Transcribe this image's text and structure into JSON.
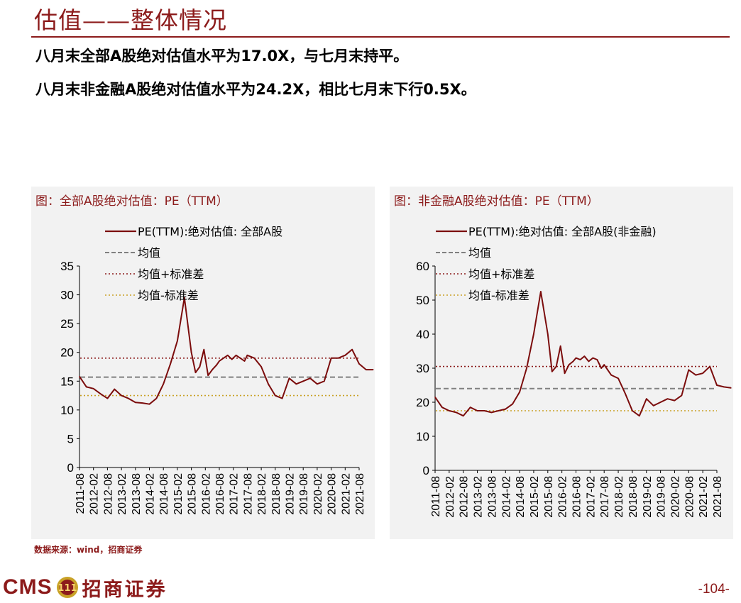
{
  "header": {
    "title": "估值——整体情况",
    "line1": "八月末全部A股绝对估值水平为17.0X，与七月末持平。",
    "line2": "八月末非金融A股绝对估值水平为24.2X，相比七月末下行0.5X。"
  },
  "footer": {
    "source": "数据来源：wind，招商证券",
    "logo_text": "CMS",
    "logo_cn": "招商证券",
    "page_number": "-104-"
  },
  "colors": {
    "accent": "#8c1b1b",
    "series": "#7b0c0c",
    "mean": "#808080",
    "upper": "#8b1a1a",
    "lower": "#c9a227"
  },
  "chart_data": [
    {
      "type": "line",
      "title": "图：全部A股绝对估值：PE（TTM）",
      "xlabel": "",
      "ylabel": "",
      "ylim": [
        0,
        35
      ],
      "yticks": [
        "0",
        "5",
        "10",
        "15",
        "20",
        "25",
        "30",
        "35"
      ],
      "x_tick_labels": [
        "2011-08",
        "2012-02",
        "2012-08",
        "2013-02",
        "2013-08",
        "2014-02",
        "2014-08",
        "2015-02",
        "2015-08",
        "2016-02",
        "2016-08",
        "2017-02",
        "2017-08",
        "2018-02",
        "2018-08",
        "2019-02",
        "2019-08",
        "2020-02",
        "2020-08",
        "2021-02",
        "2021-08"
      ],
      "series": [
        {
          "name": "PE(TTM):绝对估值: 全部A股",
          "style": "solid",
          "x": [
            0,
            0.5,
            1,
            1.5,
            2,
            2.5,
            3,
            3.5,
            4,
            4.5,
            5,
            5.5,
            6,
            6.5,
            7,
            7.5,
            8,
            8.3,
            8.6,
            8.9,
            9.2,
            9.5,
            9.8,
            10,
            10.3,
            10.6,
            10.9,
            11.2,
            11.5,
            11.8,
            12,
            12.5,
            13,
            13.5,
            14,
            14.5,
            15,
            15.5,
            16,
            16.5,
            17,
            17.5,
            18,
            18.5,
            19,
            19.5,
            20,
            20.5,
            21
          ],
          "values": [
            15.8,
            14.0,
            13.7,
            12.8,
            12.0,
            13.6,
            12.5,
            12.0,
            11.3,
            11.2,
            11.0,
            12.0,
            14.5,
            18.0,
            22.0,
            29.5,
            20.0,
            16.5,
            17.5,
            20.5,
            16.0,
            17.0,
            17.8,
            18.5,
            19.0,
            19.5,
            18.8,
            19.5,
            19.0,
            18.5,
            19.5,
            19.0,
            17.5,
            14.5,
            12.5,
            12.0,
            15.5,
            14.5,
            15.0,
            15.5,
            14.5,
            15.0,
            19.0,
            19.0,
            19.5,
            20.5,
            18.0,
            17.0,
            17.0
          ]
        },
        {
          "name": "均值",
          "style": "dashed",
          "value": 15.7
        },
        {
          "name": "均值+标准差",
          "style": "dotted",
          "value": 19.0
        },
        {
          "name": "均值-标准差",
          "style": "dotted",
          "value": 12.5
        }
      ]
    },
    {
      "type": "line",
      "title": "图：非金融A股绝对估值：PE（TTM）",
      "xlabel": "",
      "ylabel": "",
      "ylim": [
        0,
        60
      ],
      "yticks": [
        "0",
        "10",
        "20",
        "30",
        "40",
        "50",
        "60"
      ],
      "x_tick_labels": [
        "2011-08",
        "2012-02",
        "2012-08",
        "2013-02",
        "2013-08",
        "2014-02",
        "2014-08",
        "2015-02",
        "2015-08",
        "2016-02",
        "2016-08",
        "2017-02",
        "2017-08",
        "2018-02",
        "2018-08",
        "2019-02",
        "2019-08",
        "2020-02",
        "2020-08",
        "2021-02",
        "2021-08"
      ],
      "series": [
        {
          "name": "PE(TTM):绝对估值: 全部A股(非金融)",
          "style": "solid",
          "x": [
            0,
            0.5,
            1,
            1.5,
            2,
            2.5,
            3,
            3.5,
            4,
            4.5,
            5,
            5.5,
            6,
            6.5,
            7,
            7.5,
            8,
            8.3,
            8.6,
            8.9,
            9.2,
            9.5,
            9.8,
            10,
            10.3,
            10.6,
            10.9,
            11.2,
            11.5,
            11.8,
            12,
            12.5,
            13,
            13.5,
            14,
            14.5,
            15,
            15.5,
            16,
            16.5,
            17,
            17.5,
            18,
            18.5,
            19,
            19.5,
            20,
            20.5,
            21
          ],
          "values": [
            21.5,
            18.5,
            17.5,
            17.0,
            16.0,
            18.5,
            17.5,
            17.5,
            17.0,
            17.5,
            18.0,
            19.5,
            23.0,
            30.0,
            40.0,
            52.5,
            40.0,
            29.0,
            30.5,
            36.5,
            28.5,
            31.0,
            32.0,
            33.0,
            32.5,
            33.5,
            32.0,
            33.0,
            32.5,
            30.0,
            31.0,
            28.0,
            27.0,
            22.5,
            17.5,
            16.0,
            21.0,
            19.0,
            20.0,
            21.0,
            20.5,
            22.0,
            29.5,
            28.0,
            28.5,
            30.5,
            25.0,
            24.5,
            24.2
          ]
        },
        {
          "name": "均值",
          "style": "dashed",
          "value": 24.0
        },
        {
          "name": "均值+标准差",
          "style": "dotted",
          "value": 30.5
        },
        {
          "name": "均值-标准差",
          "style": "dotted",
          "value": 17.5
        }
      ]
    }
  ]
}
